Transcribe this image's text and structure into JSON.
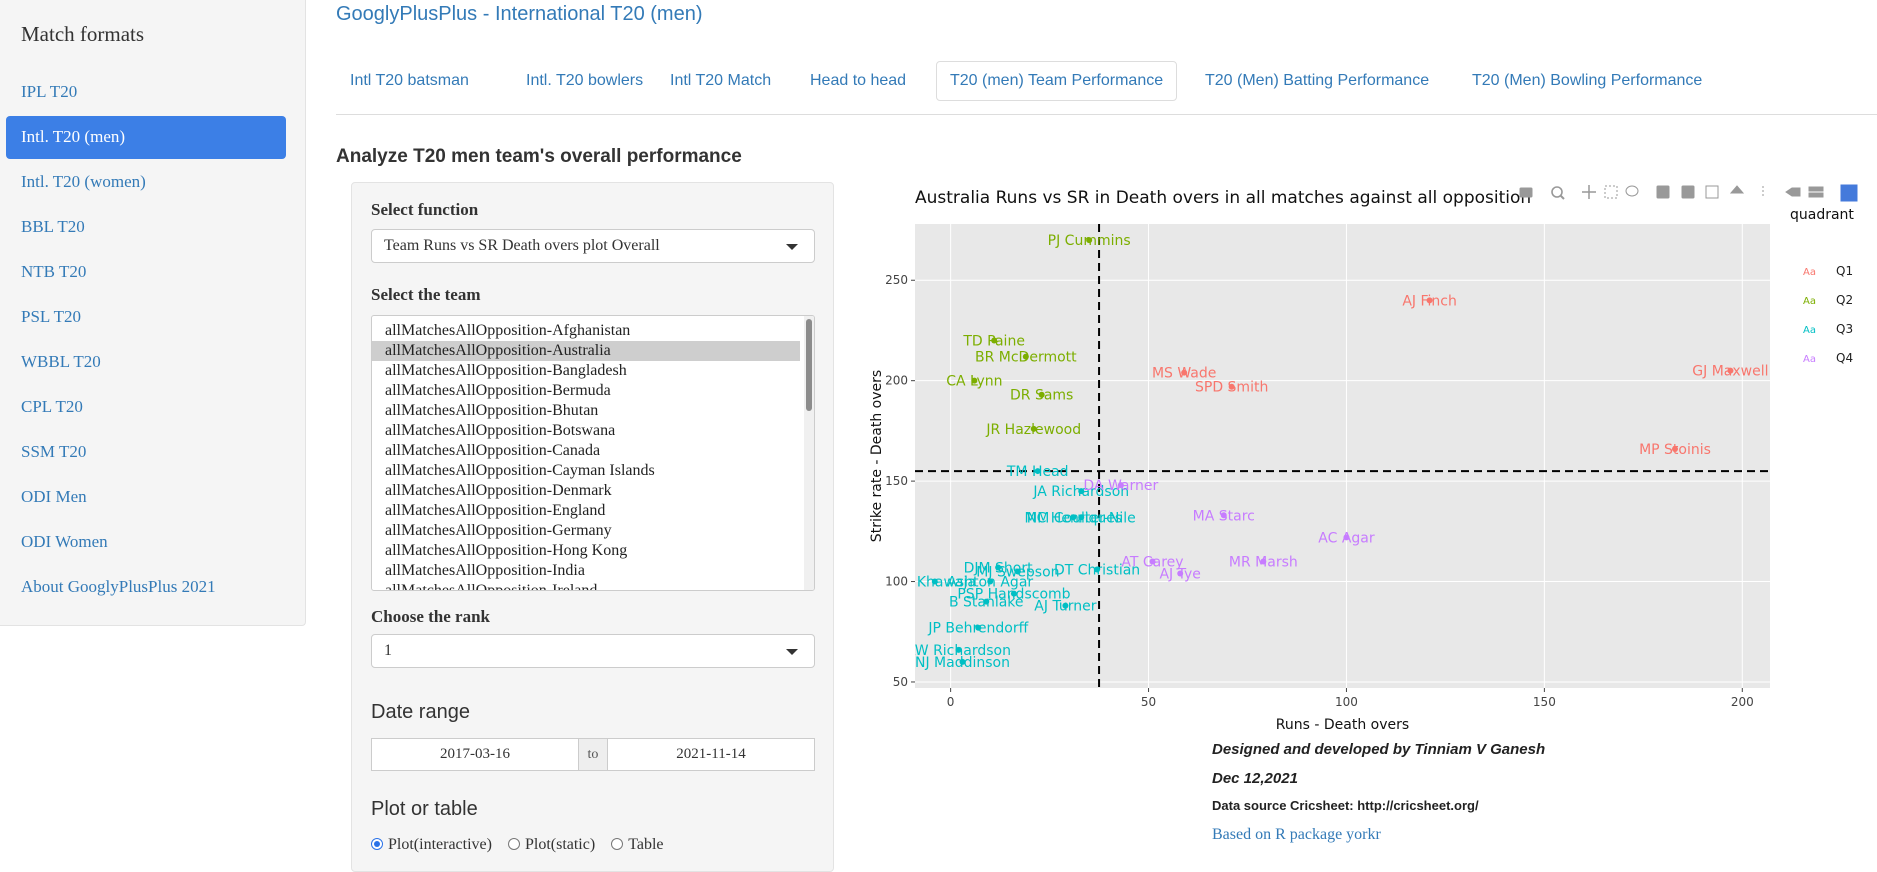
{
  "sidebar": {
    "title": "Match formats",
    "items": [
      {
        "label": "IPL T20"
      },
      {
        "label": "Intl. T20 (men)"
      },
      {
        "label": "Intl. T20 (women)"
      },
      {
        "label": "BBL T20"
      },
      {
        "label": "NTB T20"
      },
      {
        "label": "PSL T20"
      },
      {
        "label": "WBBL T20"
      },
      {
        "label": "CPL T20"
      },
      {
        "label": "SSM T20"
      },
      {
        "label": "ODI Men"
      },
      {
        "label": "ODI Women"
      },
      {
        "label": "About GooglyPlusPlus 2021"
      }
    ],
    "active_index": 1
  },
  "header": {
    "app_title": "GooglyPlusPlus - International T20 (men)",
    "tabs": [
      {
        "label": "Intl T20 batsman"
      },
      {
        "label": "Intl. T20 bowlers"
      },
      {
        "label": "Intl T20 Match"
      },
      {
        "label": "Head to head"
      },
      {
        "label": "T20 (men) Team Performance"
      },
      {
        "label": "T20 (Men) Batting Performance"
      },
      {
        "label": "T20 (Men) Bowling Performance"
      }
    ],
    "active_tab": 4
  },
  "main": {
    "heading": "Analyze T20 men team's overall performance",
    "select_function_label": "Select function",
    "select_function_value": "Team Runs vs SR Death overs plot Overall",
    "select_team_label": "Select the team",
    "teams": [
      "allMatchesAllOpposition-Afghanistan",
      "allMatchesAllOpposition-Australia",
      "allMatchesAllOpposition-Bangladesh",
      "allMatchesAllOpposition-Bermuda",
      "allMatchesAllOpposition-Bhutan",
      "allMatchesAllOpposition-Botswana",
      "allMatchesAllOpposition-Canada",
      "allMatchesAllOpposition-Cayman Islands",
      "allMatchesAllOpposition-Denmark",
      "allMatchesAllOpposition-England",
      "allMatchesAllOpposition-Germany",
      "allMatchesAllOpposition-Hong Kong",
      "allMatchesAllOpposition-India",
      "allMatchesAllOpposition-Ireland"
    ],
    "selected_team_index": 1,
    "rank_label": "Choose the rank",
    "rank_value": "1",
    "date_range_label": "Date range",
    "date_from": "2017-03-16",
    "date_to_sep": "to",
    "date_to": "2021-11-14",
    "plot_or_table_label": "Plot or table",
    "radio_options": [
      {
        "label": "Plot(interactive)",
        "checked": true
      },
      {
        "label": "Plot(static)",
        "checked": false
      },
      {
        "label": "Table",
        "checked": false
      }
    ]
  },
  "footer": {
    "designed_by": "Designed and developed by Tinniam V Ganesh",
    "date": "Dec 12,2021",
    "data_source": "Data source Cricsheet: http://cricsheet.org/",
    "package_link": "Based on R package yorkr"
  },
  "colors": {
    "accent": "#3c7fe6",
    "link": "#337ab7",
    "q1": "#F8766D",
    "q2": "#7CAE00",
    "q3": "#00BFC4",
    "q4": "#C77CFF",
    "panel_bg": "#e8e8e8"
  },
  "chart_data": {
    "type": "scatter",
    "title": "Australia  Runs vs SR in Death overs in all matches against all opposition",
    "xlabel": "Runs - Death overs",
    "ylabel": "Strike rate - Death overs",
    "xlim": [
      -9,
      207
    ],
    "ylim": [
      47,
      278
    ],
    "xticks": [
      0,
      50,
      100,
      150,
      200
    ],
    "yticks": [
      50,
      100,
      150,
      200,
      250
    ],
    "grid": true,
    "vline_x": 37.5,
    "hline_y": 155,
    "legend_title": "quadrant",
    "legend_placement": "right",
    "legend_symbol": "Aa",
    "series": [
      {
        "name": "Q1",
        "color": "#F8766D",
        "points": [
          {
            "label": "AJ Finch",
            "x": 121,
            "y": 240
          },
          {
            "label": "GJ Maxwell",
            "x": 197,
            "y": 205
          },
          {
            "label": "MS Wade",
            "x": 59,
            "y": 204
          },
          {
            "label": "SPD Smith",
            "x": 71,
            "y": 197
          },
          {
            "label": "MP Stoinis",
            "x": 183,
            "y": 166
          }
        ]
      },
      {
        "name": "Q2",
        "color": "#7CAE00",
        "points": [
          {
            "label": "PJ Cummins",
            "x": 35,
            "y": 270
          },
          {
            "label": "TD Paine",
            "x": 11,
            "y": 220
          },
          {
            "label": "BR McDermott",
            "x": 19,
            "y": 212
          },
          {
            "label": "CA Lynn",
            "x": 6,
            "y": 200
          },
          {
            "label": "DR Sams",
            "x": 23,
            "y": 193
          },
          {
            "label": "JR Hazlewood",
            "x": 21,
            "y": 176
          }
        ]
      },
      {
        "name": "Q3",
        "color": "#00BFC4",
        "points": [
          {
            "label": "TM Head",
            "x": 22,
            "y": 155
          },
          {
            "label": "JA Richardson",
            "x": 33,
            "y": 145
          },
          {
            "label": "NM Coulter-Nile",
            "x": 33,
            "y": 132
          },
          {
            "label": "MC Henriques",
            "x": 31,
            "y": 132
          },
          {
            "label": "DJM Short",
            "x": 12,
            "y": 107
          },
          {
            "label": "MJ Swepson",
            "x": 17,
            "y": 105
          },
          {
            "label": "DT Christian",
            "x": 37,
            "y": 106
          },
          {
            "label": "UT Khawaja",
            "x": -4,
            "y": 100
          },
          {
            "label": "AJ Turner",
            "x": 29,
            "y": 88
          },
          {
            "label": "B Stanlake",
            "x": 9,
            "y": 90
          },
          {
            "label": "PSP Handscomb",
            "x": 16,
            "y": 94
          },
          {
            "label": "Ashton Agar",
            "x": 10,
            "y": 100
          },
          {
            "label": "JP Behrendorff",
            "x": 7,
            "y": 77
          },
          {
            "label": "KW Richardson",
            "x": 2,
            "y": 66
          },
          {
            "label": "NJ Maddinson",
            "x": 3,
            "y": 60
          }
        ]
      },
      {
        "name": "Q4",
        "color": "#C77CFF",
        "points": [
          {
            "label": "DA Warner",
            "x": 43,
            "y": 148
          },
          {
            "label": "MA Starc",
            "x": 69,
            "y": 133
          },
          {
            "label": "AC Agar",
            "x": 100,
            "y": 122
          },
          {
            "label": "AT Carey",
            "x": 51,
            "y": 110
          },
          {
            "label": "MR Marsh",
            "x": 79,
            "y": 110
          },
          {
            "label": "AJ Tye",
            "x": 58,
            "y": 104
          }
        ]
      }
    ]
  }
}
